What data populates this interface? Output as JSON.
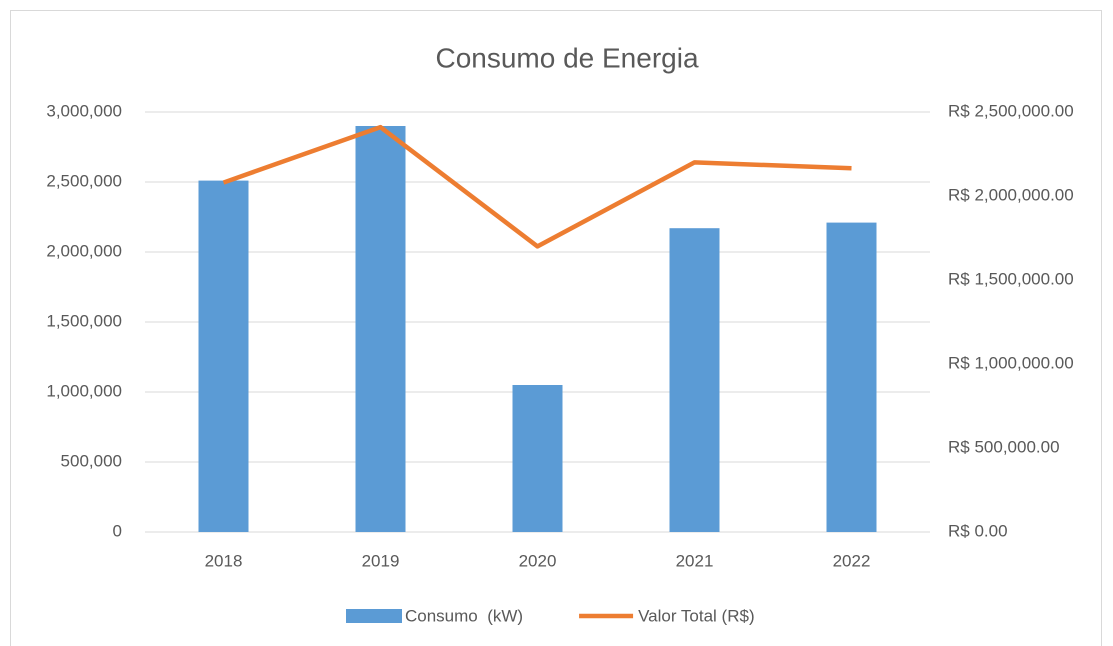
{
  "chart_data": {
    "type": "bar_line",
    "title": "Consumo de Energia",
    "categories": [
      "2018",
      "2019",
      "2020",
      "2021",
      "2022"
    ],
    "series": [
      {
        "name": "Consumo  (kW)",
        "type": "bar",
        "color": "#5b9bd5",
        "values": [
          2510000,
          2900000,
          1050000,
          2170000,
          2210000
        ]
      },
      {
        "name": "Valor Total (R$)",
        "type": "line",
        "axis": "y2",
        "color": "#ed7d31",
        "values": [
          2080000,
          2410000,
          1700000,
          2200000,
          2165000
        ]
      }
    ],
    "ylim": [
      0,
      3000000
    ],
    "yticks": [
      0,
      {
        "value": 500000,
        "label": "500,000"
      },
      {
        "value": 1000000,
        "label": "1,000,000"
      },
      {
        "value": 1500000,
        "label": "1,500,000"
      },
      {
        "value": 2000000,
        "label": "2,000,000"
      },
      {
        "value": 2500000,
        "label": "2,500,000"
      },
      {
        "value": 3000000,
        "label": "3,000,000"
      }
    ],
    "y2lim": [
      0,
      2500000
    ],
    "y2ticks": [
      {
        "value": 0,
        "label": "R$ 0.00"
      },
      {
        "value": 500000,
        "label": "R$ 500,000.00"
      },
      {
        "value": 1000000,
        "label": "R$ 1,000,000.00"
      },
      {
        "value": 1500000,
        "label": "R$ 1,500,000.00"
      },
      {
        "value": 2000000,
        "label": "R$ 2,000,000.00"
      },
      {
        "value": 2500000,
        "label": "R$ 2,500,000.00"
      }
    ],
    "grid": true,
    "legend": "bottom"
  }
}
